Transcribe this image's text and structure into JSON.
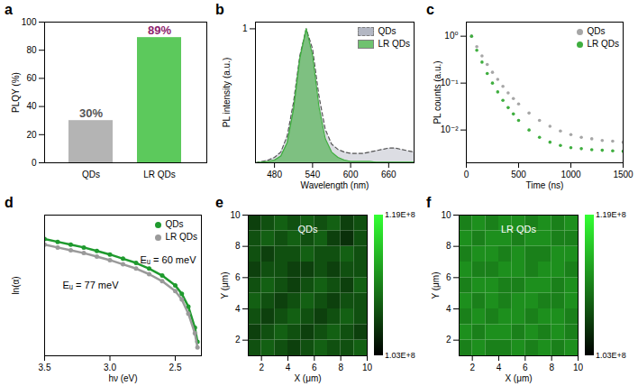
{
  "chart_data": [
    {
      "panel": "a",
      "type": "bar",
      "y_label": "PLQY (%)",
      "categories": [
        "QDs",
        "LR QDs"
      ],
      "values": [
        30,
        89
      ],
      "value_labels": [
        "30%",
        "89%"
      ],
      "colors": [
        "#b4b4b4",
        "#5cc95c"
      ],
      "data_labels": true,
      "ylim": [
        0,
        100
      ],
      "yticks": [
        0,
        20,
        40,
        60,
        80,
        100
      ]
    },
    {
      "panel": "b",
      "type": "area",
      "x_label": "Wavelength (nm)",
      "y_label": "PL intensity (a.u.)",
      "x": [
        450,
        460,
        470,
        480,
        490,
        500,
        510,
        520,
        530,
        540,
        550,
        560,
        570,
        580,
        590,
        600,
        610,
        620,
        630,
        640,
        650,
        660,
        670,
        680,
        690,
        700
      ],
      "series": [
        {
          "name": "QDs",
          "color": "#9a9fb0",
          "line_style": "dashed",
          "values": [
            0,
            0.01,
            0.02,
            0.04,
            0.08,
            0.2,
            0.45,
            0.8,
            1.0,
            0.85,
            0.5,
            0.25,
            0.14,
            0.1,
            0.08,
            0.07,
            0.07,
            0.07,
            0.08,
            0.09,
            0.1,
            0.11,
            0.11,
            0.1,
            0.09,
            0.08
          ]
        },
        {
          "name": "LR QDs",
          "color": "#3fae3f",
          "line_style": "solid",
          "values": [
            0,
            0.005,
            0.01,
            0.02,
            0.05,
            0.15,
            0.4,
            0.78,
            1.0,
            0.8,
            0.42,
            0.18,
            0.08,
            0.04,
            0.02,
            0.01,
            0.01,
            0.01,
            0.01,
            0.005,
            0.005,
            0.005,
            0.005,
            0.005,
            0.005,
            0.005
          ]
        }
      ],
      "xlim": [
        450,
        700
      ],
      "xticks": [
        480,
        540,
        600,
        660
      ],
      "ylim": [
        0,
        1.05
      ],
      "yticks": [
        1
      ],
      "legend": "top-right"
    },
    {
      "panel": "c",
      "type": "scatter",
      "x_label": "Time (ns)",
      "y_label": "PL counts (a.u.)",
      "x": [
        50,
        100,
        150,
        200,
        250,
        300,
        350,
        400,
        450,
        500,
        600,
        700,
        800,
        900,
        1000,
        1100,
        1200,
        1300,
        1400,
        1500
      ],
      "series": [
        {
          "name": "QDs",
          "color": "#a6a6a6",
          "marker": "circle",
          "values": [
            1.0,
            0.6,
            0.38,
            0.25,
            0.17,
            0.12,
            0.085,
            0.062,
            0.047,
            0.036,
            0.023,
            0.016,
            0.012,
            0.0095,
            0.008,
            0.007,
            0.0065,
            0.006,
            0.0058,
            0.0055
          ]
        },
        {
          "name": "LR QDs",
          "color": "#3fae3f",
          "marker": "circle",
          "values": [
            1.0,
            0.5,
            0.28,
            0.16,
            0.1,
            0.065,
            0.043,
            0.03,
            0.022,
            0.016,
            0.01,
            0.007,
            0.0055,
            0.0047,
            0.0042,
            0.004,
            0.0038,
            0.0037,
            0.0036,
            0.0035
          ]
        }
      ],
      "log": "y",
      "xlim": [
        0,
        1500
      ],
      "xticks": [
        0,
        500,
        1000,
        1500
      ],
      "ylim": [
        0.002,
        2
      ],
      "yticks": [
        {
          "value": 0.01,
          "label": "10⁻²"
        },
        {
          "value": 0.1,
          "label": "10⁻¹"
        },
        {
          "value": 1,
          "label": "10⁰"
        }
      ],
      "legend": "top-right"
    },
    {
      "panel": "d",
      "type": "line",
      "x_label": "hν (eV)",
      "y_label": "ln(α)",
      "x": [
        3.5,
        3.4,
        3.3,
        3.2,
        3.1,
        3.0,
        2.9,
        2.8,
        2.7,
        2.6,
        2.5,
        2.45,
        2.4,
        2.35,
        2.33
      ],
      "series": [
        {
          "name": "QDs",
          "color": "#1f9a2e",
          "marker": "circle",
          "values": [
            8.3,
            8.1,
            7.9,
            7.7,
            7.45,
            7.2,
            6.9,
            6.6,
            6.2,
            5.7,
            5.0,
            4.4,
            3.5,
            2.0,
            1.0
          ]
        },
        {
          "name": "LR QDs",
          "color": "#9a9a9a",
          "marker": "circle",
          "values": [
            7.9,
            7.7,
            7.5,
            7.3,
            7.05,
            6.8,
            6.5,
            6.2,
            5.8,
            5.3,
            4.6,
            4.0,
            3.0,
            1.6,
            0.6
          ]
        }
      ],
      "annotations": [
        {
          "text": "Eᵤ = 60 meV",
          "series": "QDs"
        },
        {
          "text": "Eᵤ = 77 meV",
          "series": "LR QDs"
        }
      ],
      "xlim": [
        3.5,
        2.3
      ],
      "xticks": [
        3.5,
        {
          "value": 3,
          "label": "3.0"
        },
        2.5
      ],
      "ylim": [
        0,
        10
      ],
      "tick_labels": "x",
      "legend": "top-right"
    },
    {
      "panel": "e",
      "type": "heatmap",
      "title": "QDs",
      "x_label": "X (μm)",
      "y_label": "Y (μm)",
      "x_edges": [
        1,
        2,
        3,
        4,
        5,
        6,
        7,
        8,
        9,
        10
      ],
      "y_edges": [
        1,
        2,
        3,
        4,
        5,
        6,
        7,
        8,
        9,
        10
      ],
      "values": [
        [
          108000000.0,
          109000000.0,
          108000000.0,
          107000000.0,
          108000000.0,
          109000000.0,
          108000000.0,
          108000000.0,
          109000000.0
        ],
        [
          107000000.0,
          108000000.0,
          109000000.0,
          108000000.0,
          107000000.0,
          108000000.0,
          109000000.0,
          108000000.0,
          107000000.0
        ],
        [
          108000000.0,
          107000000.0,
          108000000.0,
          109000000.0,
          108000000.0,
          107000000.0,
          108000000.0,
          109000000.0,
          108000000.0
        ],
        [
          109000000.0,
          108000000.0,
          107000000.0,
          108000000.0,
          109000000.0,
          108000000.0,
          107000000.0,
          108000000.0,
          108000000.0
        ],
        [
          108000000.0,
          109000000.0,
          108000000.0,
          107000000.0,
          108000000.0,
          109000000.0,
          108000000.0,
          107000000.0,
          109000000.0
        ],
        [
          107000000.0,
          108000000.0,
          108000000.0,
          107000000.0,
          107000000.0,
          108000000.0,
          107000000.0,
          108000000.0,
          108000000.0
        ],
        [
          108000000.0,
          107000000.0,
          108000000.0,
          108000000.0,
          109000000.0,
          108000000.0,
          108000000.0,
          109000000.0,
          108000000.0
        ],
        [
          108000000.0,
          109000000.0,
          108000000.0,
          109000000.0,
          108000000.0,
          109000000.0,
          107000000.0,
          106000000.0,
          108000000.0
        ],
        [
          107000000.0,
          108000000.0,
          109000000.0,
          108000000.0,
          109000000.0,
          108000000.0,
          109000000.0,
          107000000.0,
          108000000.0
        ]
      ],
      "xlim": [
        1,
        10
      ],
      "xticks": [
        2,
        4,
        6,
        8,
        10
      ],
      "ylim": [
        1,
        10
      ],
      "yticks": [
        2,
        4,
        6,
        8,
        10
      ],
      "colorbar": {
        "range": [
          103000000.0,
          119000000.0
        ],
        "ticks": [
          {
            "value": 103000000.0,
            "label": "1.03E+8"
          },
          {
            "value": 119000000.0,
            "label": "1.19E+8"
          }
        ]
      }
    },
    {
      "panel": "f",
      "type": "heatmap",
      "title": "LR QDs",
      "x_label": "X (μm)",
      "y_label": "Y (μm)",
      "x_edges": [
        1,
        2,
        3,
        4,
        5,
        6,
        7,
        8,
        9,
        10
      ],
      "y_edges": [
        1,
        2,
        3,
        4,
        5,
        6,
        7,
        8,
        9,
        10
      ],
      "values": [
        [
          111000000.0,
          112000000.0,
          111000000.0,
          111000000.0,
          112000000.0,
          111000000.0,
          112000000.0,
          111000000.0,
          112000000.0
        ],
        [
          112000000.0,
          111000000.0,
          112000000.0,
          112000000.0,
          111000000.0,
          112000000.0,
          111000000.0,
          112000000.0,
          111000000.0
        ],
        [
          111000000.0,
          112000000.0,
          111000000.0,
          112000000.0,
          112000000.0,
          111000000.0,
          112000000.0,
          112000000.0,
          111000000.0
        ],
        [
          112000000.0,
          111000000.0,
          112000000.0,
          111000000.0,
          112000000.0,
          112000000.0,
          111000000.0,
          111000000.0,
          112000000.0
        ],
        [
          111000000.0,
          112000000.0,
          112000000.0,
          111000000.0,
          111000000.0,
          112000000.0,
          112000000.0,
          111000000.0,
          112000000.0
        ],
        [
          112000000.0,
          111000000.0,
          111000000.0,
          112000000.0,
          112000000.0,
          111000000.0,
          112000000.0,
          112000000.0,
          111000000.0
        ],
        [
          111000000.0,
          112000000.0,
          112000000.0,
          111000000.0,
          112000000.0,
          111000000.0,
          111000000.0,
          112000000.0,
          112000000.0
        ],
        [
          112000000.0,
          111000000.0,
          112000000.0,
          112000000.0,
          111000000.0,
          112000000.0,
          112000000.0,
          111000000.0,
          111000000.0
        ],
        [
          111000000.0,
          112000000.0,
          111000000.0,
          112000000.0,
          112000000.0,
          111000000.0,
          112000000.0,
          111000000.0,
          112000000.0
        ]
      ],
      "xlim": [
        1,
        10
      ],
      "xticks": [
        2,
        4,
        6,
        8,
        10
      ],
      "ylim": [
        1,
        10
      ],
      "yticks": [
        2,
        4,
        6,
        8,
        10
      ],
      "colorbar": {
        "range": [
          103000000.0,
          119000000.0
        ],
        "ticks": [
          {
            "value": 103000000.0,
            "label": "1.03E+8"
          },
          {
            "value": 119000000.0,
            "label": "1.19E+8"
          }
        ]
      }
    }
  ]
}
